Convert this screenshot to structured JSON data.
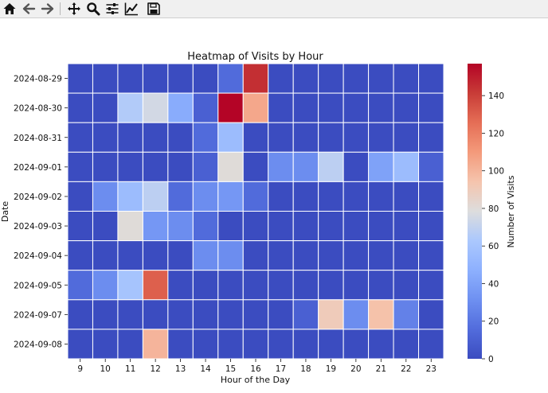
{
  "toolbar": {
    "buttons": [
      {
        "name": "home-icon"
      },
      {
        "name": "back-arrow-icon"
      },
      {
        "name": "forward-arrow-icon"
      },
      {
        "name": "pan-icon"
      },
      {
        "name": "zoom-icon"
      },
      {
        "name": "configure-subplots-icon"
      },
      {
        "name": "edit-axis-icon"
      },
      {
        "name": "save-icon"
      }
    ]
  },
  "chart_data": {
    "type": "heatmap",
    "title": "Heatmap of Visits by Hour",
    "xlabel": "Hour of the Day",
    "ylabel": "Date",
    "x": [
      "9",
      "10",
      "11",
      "12",
      "13",
      "14",
      "15",
      "16",
      "17",
      "18",
      "19",
      "20",
      "21",
      "22",
      "23"
    ],
    "y": [
      "2024-08-29",
      "2024-08-30",
      "2024-08-31",
      "2024-09-01",
      "2024-09-02",
      "2024-09-03",
      "2024-09-04",
      "2024-09-05",
      "2024-09-07",
      "2024-09-08"
    ],
    "values": [
      [
        0,
        0,
        0,
        0,
        0,
        0,
        15,
        145,
        0,
        0,
        0,
        0,
        0,
        0,
        0
      ],
      [
        0,
        0,
        65,
        75,
        45,
        10,
        157,
        105,
        0,
        0,
        0,
        0,
        0,
        0,
        0
      ],
      [
        0,
        0,
        0,
        0,
        0,
        15,
        55,
        0,
        0,
        0,
        0,
        0,
        0,
        0,
        0
      ],
      [
        0,
        0,
        0,
        0,
        0,
        10,
        80,
        0,
        30,
        30,
        68,
        0,
        40,
        55,
        10
      ],
      [
        0,
        30,
        55,
        68,
        15,
        30,
        35,
        15,
        0,
        0,
        0,
        0,
        0,
        0,
        0
      ],
      [
        0,
        0,
        80,
        35,
        30,
        15,
        0,
        0,
        0,
        0,
        0,
        0,
        0,
        0,
        0
      ],
      [
        0,
        0,
        0,
        0,
        0,
        30,
        30,
        0,
        0,
        0,
        0,
        0,
        0,
        0,
        0
      ],
      [
        15,
        30,
        60,
        130,
        0,
        0,
        0,
        0,
        0,
        0,
        0,
        0,
        0,
        0,
        0
      ],
      [
        0,
        0,
        0,
        0,
        0,
        0,
        0,
        0,
        0,
        10,
        90,
        30,
        95,
        25,
        0
      ],
      [
        0,
        0,
        0,
        100,
        0,
        0,
        0,
        0,
        0,
        0,
        0,
        0,
        0,
        0,
        0
      ]
    ],
    "colorbar": {
      "label": "Number of Visits",
      "min": 0,
      "max": 157,
      "ticks": [
        0,
        20,
        40,
        60,
        80,
        100,
        120,
        140
      ],
      "colormap": "coolwarm"
    },
    "grid": false
  }
}
